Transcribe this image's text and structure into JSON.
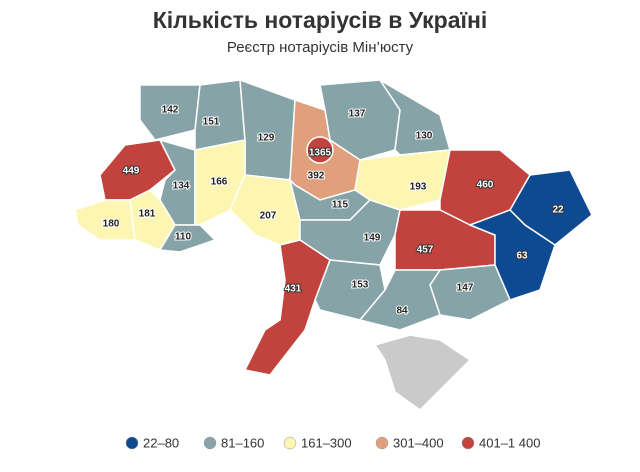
{
  "title": "Кількість нотаріусів в Україні",
  "subtitle": "Реєстр нотаріусів Мін’юсту",
  "regions": [
    {
      "value": 142,
      "color": "#86a3a8"
    },
    {
      "value": 151,
      "color": "#86a3a8"
    },
    {
      "value": 129,
      "color": "#86a3a8"
    },
    {
      "value": 137,
      "color": "#86a3a8"
    },
    {
      "value": 130,
      "color": "#86a3a8"
    },
    {
      "value": 1365,
      "color": "#c2433d"
    },
    {
      "value": 392,
      "color": "#e09f7d"
    },
    {
      "value": 449,
      "color": "#c2433d"
    },
    {
      "value": 134,
      "color": "#86a3a8"
    },
    {
      "value": 166,
      "color": "#fdf5b2"
    },
    {
      "value": 193,
      "color": "#fdf5b2"
    },
    {
      "value": 460,
      "color": "#c2433d"
    },
    {
      "value": 22,
      "color": "#0e4a91"
    },
    {
      "value": 180,
      "color": "#fdf5b2"
    },
    {
      "value": 181,
      "color": "#fdf5b2"
    },
    {
      "value": 110,
      "color": "#86a3a8"
    },
    {
      "value": 207,
      "color": "#fdf5b2"
    },
    {
      "value": 115,
      "color": "#86a3a8"
    },
    {
      "value": 149,
      "color": "#86a3a8"
    },
    {
      "value": 457,
      "color": "#c2433d"
    },
    {
      "value": 63,
      "color": "#0e4a91"
    },
    {
      "value": 431,
      "color": "#c2433d"
    },
    {
      "value": 153,
      "color": "#86a3a8"
    },
    {
      "value": 147,
      "color": "#86a3a8"
    },
    {
      "value": 84,
      "color": "#86a3a8"
    }
  ],
  "legend": [
    {
      "label": "22–80",
      "color": "#0e4a91"
    },
    {
      "label": "81–160",
      "color": "#86a3a8"
    },
    {
      "label": "161–300",
      "color": "#fdf5b2"
    },
    {
      "label": "301–400",
      "color": "#e09f7d"
    },
    {
      "label": "401–1 400",
      "color": "#c2433d"
    }
  ]
}
